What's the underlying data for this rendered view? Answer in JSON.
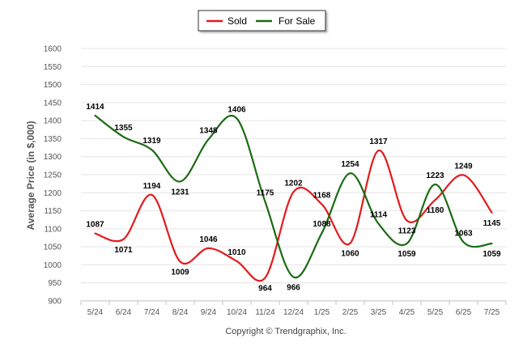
{
  "chart_data": {
    "type": "line",
    "ylabel": "Average Price (in $,000)",
    "ylim": [
      900,
      1600
    ],
    "ytick_step": 50,
    "categories": [
      "5/24",
      "6/24",
      "7/24",
      "8/24",
      "9/24",
      "10/24",
      "11/24",
      "12/24",
      "1/25",
      "2/25",
      "3/25",
      "4/25",
      "5/25",
      "6/25",
      "7/25"
    ],
    "grid": true,
    "legend_position": "top-center",
    "series": [
      {
        "name": "Sold",
        "color": "#e31a1c",
        "values": [
          1087,
          1071,
          1194,
          1009,
          1046,
          1010,
          964,
          1202,
          1168,
          1060,
          1317,
          1123,
          1180,
          1249,
          1145
        ]
      },
      {
        "name": "For Sale",
        "color": "#1b6b14",
        "values": [
          1414,
          1355,
          1319,
          1231,
          1348,
          1406,
          1175,
          966,
          1088,
          1254,
          1114,
          1059,
          1223,
          1063,
          1059
        ]
      }
    ],
    "footer": "Copyright © Trendgraphix, Inc."
  }
}
